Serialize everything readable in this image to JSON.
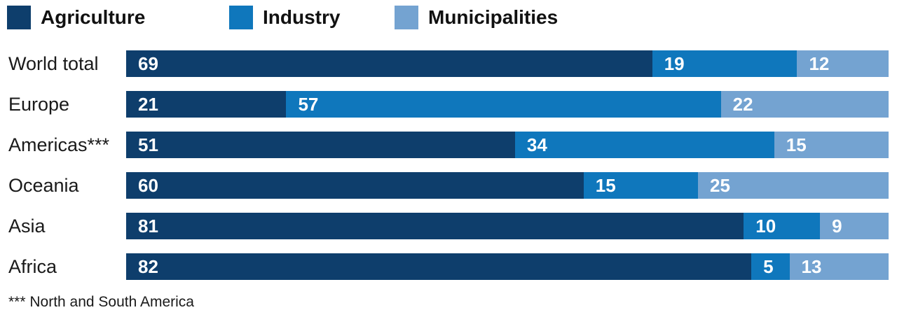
{
  "chart_data": {
    "type": "bar",
    "orientation": "horizontal",
    "stacked": true,
    "unit_total": 100,
    "xlim": [
      0,
      100
    ],
    "grid": false,
    "legend_position": "top",
    "categories": [
      "World total",
      "Europe",
      "Americas***",
      "Oceania",
      "Asia",
      "Africa"
    ],
    "series": [
      {
        "name": "Agriculture",
        "color": "#0e3e6c",
        "values": [
          69,
          21,
          51,
          60,
          81,
          82
        ]
      },
      {
        "name": "Industry",
        "color": "#0f77bc",
        "values": [
          19,
          57,
          34,
          15,
          10,
          5
        ]
      },
      {
        "name": "Municipalities",
        "color": "#74a3d1",
        "values": [
          12,
          22,
          15,
          25,
          9,
          13
        ]
      }
    ]
  },
  "legend": {
    "items": [
      {
        "label": "Agriculture",
        "color": "#0e3e6c"
      },
      {
        "label": "Industry",
        "color": "#0f77bc"
      },
      {
        "label": "Municipalities",
        "color": "#74a3d1"
      }
    ]
  },
  "footnote": "*** North and South America",
  "colors": {
    "agriculture": "#0e3e6c",
    "industry": "#0f77bc",
    "municipalities": "#74a3d1",
    "text": "#1a1a1a",
    "bar_value_text": "#ffffff",
    "background": "#ffffff"
  }
}
